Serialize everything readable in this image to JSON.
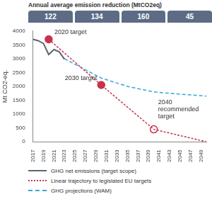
{
  "chart_data": {
    "type": "line",
    "header": {
      "title": "Annual average emission reduction (MtCO2eq)",
      "values": [
        122,
        134,
        160,
        45
      ]
    },
    "y_label": "Mt CO2-eq.",
    "xlim": [
      2017,
      2050
    ],
    "xticks": [
      2017,
      2019,
      2021,
      2023,
      2025,
      2027,
      2029,
      2031,
      2033,
      2035,
      2037,
      2039,
      2041,
      2043,
      2045,
      2047,
      2049
    ],
    "ylim": [
      0,
      4000
    ],
    "yticks": [
      0,
      500,
      1000,
      1500,
      2000,
      2500,
      3000,
      3500,
      4000
    ],
    "grid": false,
    "legend": "bottom",
    "series": [
      {
        "name": "GHG net emissions (target scope)",
        "color": "#5b6770",
        "line_style": "solid",
        "x": [
          2017,
          2018,
          2019,
          2020,
          2021,
          2022,
          2023
        ],
        "values": [
          3700,
          3650,
          3550,
          3150,
          3330,
          3250,
          2980
        ]
      },
      {
        "name": "Linear trajectory to legislated EU targets",
        "color": "#c8334a",
        "line_style": "dotted",
        "x": [
          2020,
          2030,
          2040,
          2050
        ],
        "values": [
          3700,
          2050,
          450,
          0
        ]
      },
      {
        "name": "GHG projections (WAM)",
        "color": "#3aa6d8",
        "line_style": "dashed",
        "x": [
          2023,
          2025,
          2030,
          2035,
          2040,
          2045,
          2050
        ],
        "values": [
          3000,
          2800,
          2300,
          2000,
          1800,
          1720,
          1650
        ]
      }
    ],
    "annotations": [
      {
        "text": [
          "2020 target"
        ],
        "x": 2020,
        "y": 3700,
        "marker": "filled",
        "color": "#c8334a"
      },
      {
        "text": [
          "2030 target"
        ],
        "x": 2030,
        "y": 2050,
        "marker": "filled",
        "color": "#c8334a"
      },
      {
        "text": [
          "2040",
          "recommended",
          "target"
        ],
        "x": 2040,
        "y": 450,
        "marker": "hollow",
        "color": "#c8334a"
      }
    ]
  }
}
